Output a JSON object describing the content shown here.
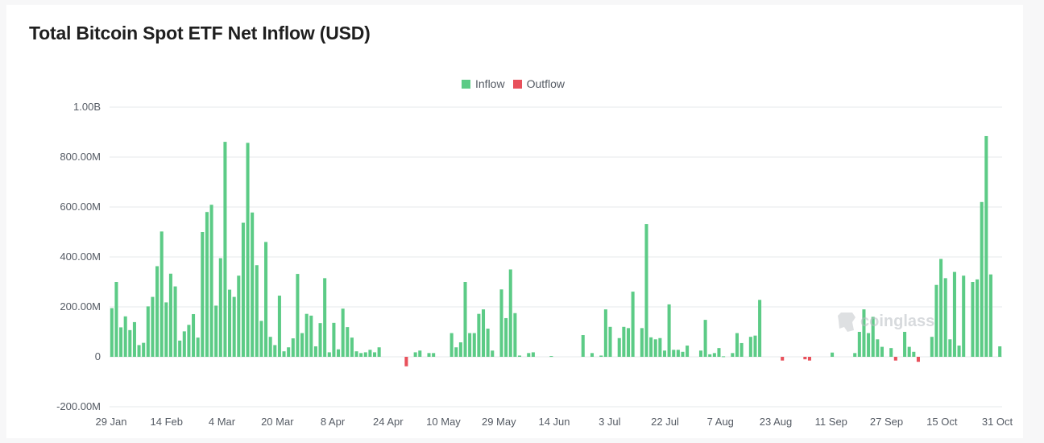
{
  "title": "Total Bitcoin Spot ETF Net Inflow (USD)",
  "legend": {
    "inflow_label": "Inflow",
    "outflow_label": "Outflow",
    "inflow_color": "#5ccb86",
    "outflow_color": "#e8505b"
  },
  "watermark": {
    "text": "coinglass",
    "icon": "coinglass-logo-icon"
  },
  "chart_data": {
    "type": "bar",
    "title": "Total Bitcoin Spot ETF Net Inflow (USD)",
    "xlabel": "",
    "ylabel": "",
    "ylim": [
      -200,
      1000
    ],
    "y_unit": "M USD",
    "yticks": [
      {
        "value": 1000,
        "label": "1.00B"
      },
      {
        "value": 800,
        "label": "800.00M"
      },
      {
        "value": 600,
        "label": "600.00M"
      },
      {
        "value": 400,
        "label": "400.00M"
      },
      {
        "value": 200,
        "label": "200.00M"
      },
      {
        "value": 0,
        "label": "0"
      },
      {
        "value": -200,
        "label": "-200.00M"
      }
    ],
    "xticks": [
      "29 Jan",
      "14 Feb",
      "4 Mar",
      "20 Mar",
      "8 Apr",
      "24 Apr",
      "10 May",
      "29 May",
      "14 Jun",
      "3 Jul",
      "22 Jul",
      "7 Aug",
      "23 Aug",
      "11 Sep",
      "27 Sep",
      "15 Oct",
      "31 Oct"
    ],
    "grid": "horizontal",
    "legend_position": "top-center",
    "values": [
      195,
      300,
      118,
      162,
      107,
      139,
      47,
      56,
      202,
      240,
      363,
      502,
      218,
      333,
      282,
      65,
      102,
      128,
      171,
      77,
      500,
      580,
      609,
      205,
      395,
      861,
      269,
      240,
      325,
      537,
      857,
      578,
      367,
      144,
      460,
      80,
      47,
      245,
      22,
      38,
      74,
      332,
      95,
      172,
      165,
      42,
      135,
      315,
      18,
      136,
      30,
      193,
      119,
      77,
      22,
      15,
      18,
      28,
      18,
      38,
      0,
      0,
      0,
      0,
      0,
      -38,
      0,
      18,
      25,
      0,
      15,
      15,
      0,
      0,
      0,
      95,
      38,
      58,
      300,
      95,
      95,
      172,
      190,
      113,
      25,
      0,
      270,
      155,
      350,
      175,
      5,
      0,
      15,
      18,
      0,
      0,
      0,
      3,
      0,
      0,
      0,
      0,
      0,
      0,
      87,
      0,
      15,
      0,
      5,
      190,
      120,
      0,
      75,
      120,
      115,
      261,
      0,
      115,
      532,
      78,
      70,
      75,
      25,
      210,
      28,
      28,
      20,
      45,
      0,
      0,
      25,
      148,
      10,
      15,
      35,
      2,
      0,
      15,
      95,
      55,
      0,
      80,
      85,
      228,
      0,
      0,
      0,
      0,
      -15,
      0,
      0,
      0,
      0,
      -10,
      -15,
      0,
      0,
      0,
      0,
      17,
      0,
      0,
      0,
      0,
      15,
      100,
      190,
      95,
      160,
      70,
      40,
      0,
      35,
      -15,
      0,
      100,
      40,
      20,
      -20,
      0,
      0,
      80,
      288,
      392,
      315,
      70,
      340,
      45,
      325,
      0,
      300,
      310,
      620,
      884,
      330,
      0,
      42
    ]
  }
}
